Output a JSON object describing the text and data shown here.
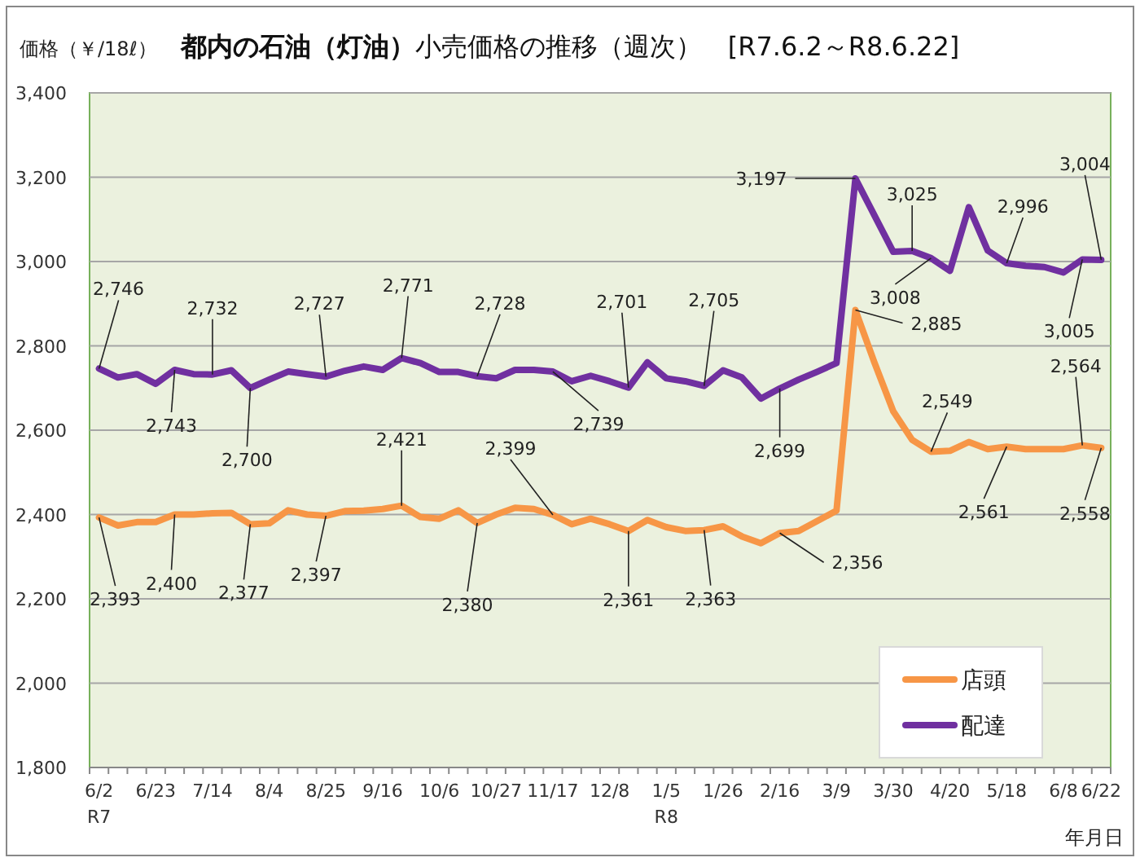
{
  "chart_data": {
    "type": "line",
    "title": "都内の石油（灯油）",
    "subtitle": "小売価格の推移（週次）　[R7.6.2～R8.6.22]",
    "ylabel": "価格（￥/18ℓ）",
    "xlabel": "年月日",
    "categories": [
      "6/2\nR7",
      null,
      null,
      "6/23",
      null,
      null,
      "7/14",
      null,
      null,
      "8/4",
      null,
      null,
      "8/25",
      null,
      null,
      "9/16",
      null,
      null,
      "10/6",
      null,
      null,
      "10/27",
      null,
      null,
      "11/17",
      null,
      null,
      "12/8",
      null,
      null,
      "1/5\nR8",
      null,
      null,
      "1/26",
      null,
      null,
      "2/16",
      null,
      null,
      "3/9",
      null,
      null,
      "3/30",
      null,
      null,
      "4/20",
      null,
      null,
      "5/18",
      null,
      null,
      "6/8",
      null,
      "6/22"
    ],
    "series": [
      {
        "name": "店頭",
        "color": "#f79646",
        "values": [
          2393,
          2374,
          2382,
          2382,
          2400,
          2400,
          2403,
          2404,
          2377,
          2379,
          2410,
          2400,
          2397,
          2408,
          2409,
          2413,
          2421,
          2394,
          2390,
          2410,
          2380,
          2400,
          2416,
          2413,
          2399,
          2377,
          2390,
          2377,
          2361,
          2387,
          2370,
          2361,
          2363,
          2372,
          2348,
          2332,
          2356,
          2361,
          2385,
          2409,
          2885,
          2761,
          2645,
          2577,
          2549,
          2551,
          2572,
          2555,
          2561,
          2555,
          2555,
          2555,
          2564,
          2558
        ],
        "value_labels": [
          "2,393",
          null,
          null,
          null,
          "2,400",
          null,
          null,
          null,
          "2,377",
          null,
          null,
          null,
          "2,397",
          null,
          null,
          null,
          "2,421",
          null,
          null,
          null,
          "2,380",
          null,
          null,
          null,
          "2,399",
          null,
          null,
          null,
          "2,361",
          null,
          null,
          null,
          "2,363",
          null,
          null,
          null,
          "2,356",
          null,
          null,
          null,
          "2,885",
          null,
          null,
          null,
          "2,549",
          null,
          null,
          null,
          "2,561",
          null,
          null,
          null,
          "2,564",
          "2,558"
        ]
      },
      {
        "name": "配達",
        "color": "#7030a0",
        "values": [
          2746,
          2725,
          2733,
          2710,
          2743,
          2733,
          2732,
          2742,
          2700,
          2720,
          2739,
          2733,
          2727,
          2741,
          2751,
          2743,
          2771,
          2759,
          2738,
          2738,
          2728,
          2723,
          2743,
          2743,
          2739,
          2716,
          2729,
          2716,
          2701,
          2761,
          2723,
          2716,
          2705,
          2742,
          2725,
          2675,
          2699,
          2720,
          2739,
          2759,
          3197,
          3110,
          3023,
          3025,
          3008,
          2978,
          3129,
          3026,
          2996,
          2990,
          2987,
          2974,
          3005,
          3004
        ],
        "value_labels": [
          "2,746",
          null,
          null,
          null,
          "2,743",
          null,
          "2,732",
          null,
          "2,700",
          null,
          null,
          null,
          "2,727",
          null,
          null,
          null,
          "2,771",
          null,
          null,
          null,
          "2,728",
          null,
          null,
          null,
          "2,739",
          null,
          null,
          null,
          "2,701",
          null,
          null,
          null,
          "2,705",
          null,
          null,
          null,
          "2,699",
          null,
          null,
          null,
          "3,197",
          null,
          null,
          "3,025",
          "3,008",
          null,
          null,
          null,
          "2,996",
          null,
          null,
          null,
          "3,005",
          "3,004"
        ]
      }
    ],
    "ylim": [
      1800,
      3400
    ],
    "yticks": [
      {
        "value": 1800,
        "label": "1,800"
      },
      {
        "value": 2000,
        "label": "2,000"
      },
      {
        "value": 2200,
        "label": "2,200"
      },
      {
        "value": 2400,
        "label": "2,400"
      },
      {
        "value": 2600,
        "label": "2,600"
      },
      {
        "value": 2800,
        "label": "2,800"
      },
      {
        "value": 3000,
        "label": "3,000"
      },
      {
        "value": 3200,
        "label": "3,200"
      },
      {
        "value": 3400,
        "label": "3,400"
      }
    ],
    "grid": "y",
    "legend": "bottom right",
    "marker": "none",
    "line_style": "solid"
  }
}
